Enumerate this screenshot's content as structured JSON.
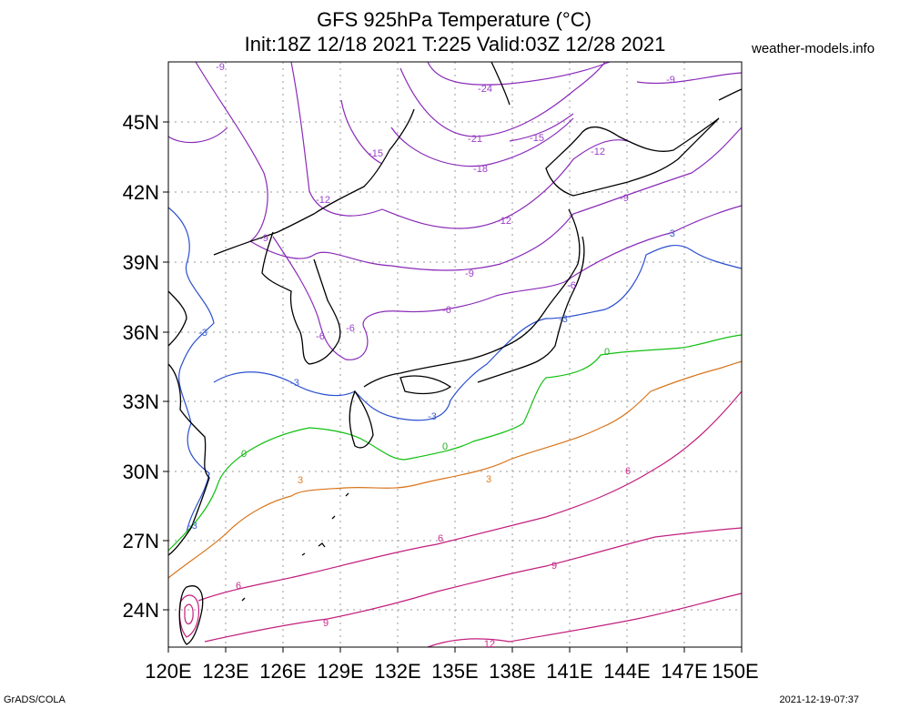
{
  "header": {
    "title_line1": "GFS 925hPa Temperature (°C)",
    "title_line2": "Init:18Z 12/18 2021 T:225 Valid:03Z 12/28 2021",
    "site": "weather-models.info"
  },
  "footer": {
    "left": "GrADS/COLA",
    "right": "2021-12-19-07:37"
  },
  "axes": {
    "lon_labels": [
      "120E",
      "123E",
      "126E",
      "129E",
      "132E",
      "135E",
      "138E",
      "141E",
      "144E",
      "147E",
      "150E"
    ],
    "lat_labels": [
      "45N",
      "42N",
      "39N",
      "36N",
      "33N",
      "30N",
      "27N",
      "24N"
    ]
  },
  "contour_labels": [
    {
      "text": "-24",
      "color": "#9b3fc9"
    },
    {
      "text": "-21",
      "color": "#9b3fc9"
    },
    {
      "text": "-18",
      "color": "#9b3fc9"
    },
    {
      "text": "-15",
      "color": "#9b3fc9"
    },
    {
      "text": "-15",
      "color": "#9b3fc9"
    },
    {
      "text": "-12",
      "color": "#9b3fc9"
    },
    {
      "text": "-12",
      "color": "#9b3fc9"
    },
    {
      "text": "-12",
      "color": "#9b3fc9"
    },
    {
      "text": "-9",
      "color": "#9b3fc9"
    },
    {
      "text": "-9",
      "color": "#9b3fc9"
    },
    {
      "text": "-9",
      "color": "#9b3fc9"
    },
    {
      "text": "-9",
      "color": "#9b3fc9"
    },
    {
      "text": "-9",
      "color": "#9b3fc9"
    },
    {
      "text": "-6",
      "color": "#9b3fc9"
    },
    {
      "text": "-6",
      "color": "#9b3fc9"
    },
    {
      "text": "-6",
      "color": "#9b3fc9"
    },
    {
      "text": "-6",
      "color": "#9b3fc9"
    },
    {
      "text": "-3",
      "color": "#3a5fd0"
    },
    {
      "text": "-3",
      "color": "#3a5fd0"
    },
    {
      "text": "-3",
      "color": "#3a5fd0"
    },
    {
      "text": "-3",
      "color": "#3a5fd0"
    },
    {
      "text": "-3",
      "color": "#3a5fd0"
    },
    {
      "text": "-3",
      "color": "#3a5fd0"
    },
    {
      "text": "0",
      "color": "#22b022"
    },
    {
      "text": "0",
      "color": "#22b022"
    },
    {
      "text": "0",
      "color": "#22b022"
    },
    {
      "text": "3",
      "color": "#e07c20"
    },
    {
      "text": "3",
      "color": "#e07c20"
    },
    {
      "text": "6",
      "color": "#cc2a8e"
    },
    {
      "text": "6",
      "color": "#cc2a8e"
    },
    {
      "text": "6",
      "color": "#cc2a8e"
    },
    {
      "text": "9",
      "color": "#cc2a8e"
    },
    {
      "text": "9",
      "color": "#cc2a8e"
    },
    {
      "text": "12",
      "color": "#cc2a8e"
    }
  ],
  "colors": {
    "cold": "#8a2bb8",
    "minus3": "#2a4fd0",
    "zero": "#11c011",
    "plus3": "#d8741a",
    "warm": "#c21f7e",
    "coast": "#000000",
    "grid": "#9a9a9a"
  }
}
